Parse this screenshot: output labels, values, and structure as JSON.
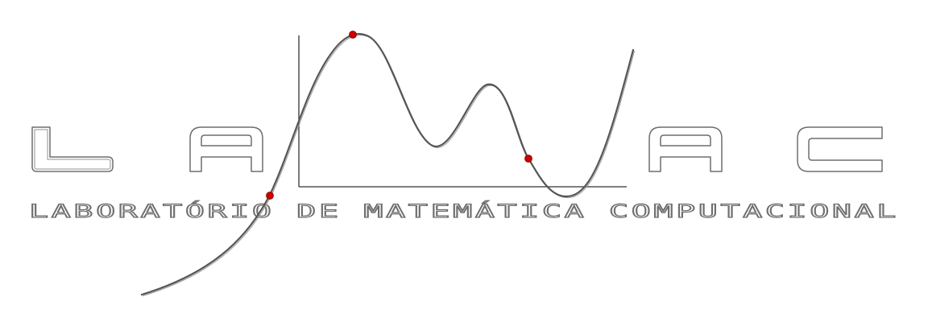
{
  "logo": {
    "letters": [
      "L",
      "A",
      "",
      "A",
      "C"
    ],
    "subtitle": "LABORATÓRIO DE MATEMÁTICA COMPUTACIONAL",
    "colors": {
      "outline": "#6e6e6e",
      "curve": "#555555",
      "axis": "#333333",
      "point": "#cc0000",
      "background": "#ffffff"
    }
  }
}
